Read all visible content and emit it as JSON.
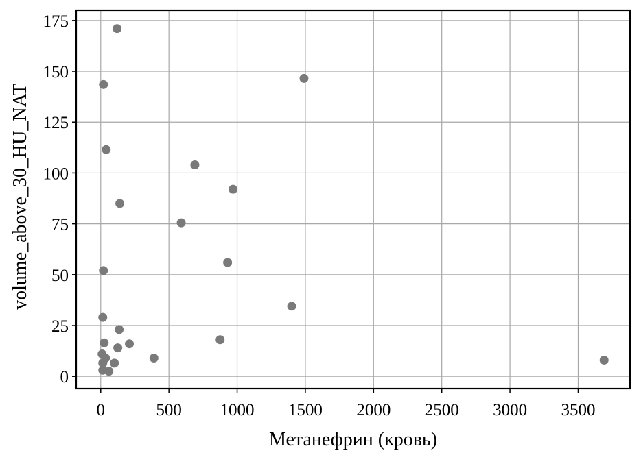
{
  "chart_data": {
    "type": "scatter",
    "title": "",
    "xlabel": "Метанефрин (кровь)",
    "ylabel": "volume_above_30_HU_NAT",
    "xlim": [
      -180,
      3880
    ],
    "ylim": [
      -6,
      180
    ],
    "grid": true,
    "marker_color": "#7a7a7a",
    "x_ticks": [
      0,
      500,
      1000,
      1500,
      2000,
      2500,
      3000,
      3500
    ],
    "y_ticks": [
      0,
      25,
      50,
      75,
      100,
      125,
      150,
      175
    ],
    "x_tick_labels": [
      "0",
      "500",
      "1000",
      "1500",
      "2000",
      "2500",
      "3000",
      "3500"
    ],
    "y_tick_labels": [
      "0",
      "25",
      "50",
      "75",
      "100",
      "125",
      "150",
      "175"
    ],
    "series": [
      {
        "points": [
          {
            "x": 120,
            "y": 171
          },
          {
            "x": 20,
            "y": 143.5
          },
          {
            "x": 1490,
            "y": 146.5
          },
          {
            "x": 40,
            "y": 111.5
          },
          {
            "x": 690,
            "y": 104
          },
          {
            "x": 970,
            "y": 92
          },
          {
            "x": 140,
            "y": 85
          },
          {
            "x": 590,
            "y": 75.5
          },
          {
            "x": 930,
            "y": 56
          },
          {
            "x": 20,
            "y": 52
          },
          {
            "x": 1400,
            "y": 34.5
          },
          {
            "x": 15,
            "y": 29
          },
          {
            "x": 135,
            "y": 23
          },
          {
            "x": 875,
            "y": 18
          },
          {
            "x": 25,
            "y": 16.5
          },
          {
            "x": 210,
            "y": 16
          },
          {
            "x": 125,
            "y": 14
          },
          {
            "x": 10,
            "y": 11
          },
          {
            "x": 35,
            "y": 9
          },
          {
            "x": 390,
            "y": 9
          },
          {
            "x": 15,
            "y": 6.5
          },
          {
            "x": 100,
            "y": 6.5
          },
          {
            "x": 15,
            "y": 3
          },
          {
            "x": 60,
            "y": 2.5
          },
          {
            "x": 3690,
            "y": 8
          }
        ]
      }
    ]
  }
}
